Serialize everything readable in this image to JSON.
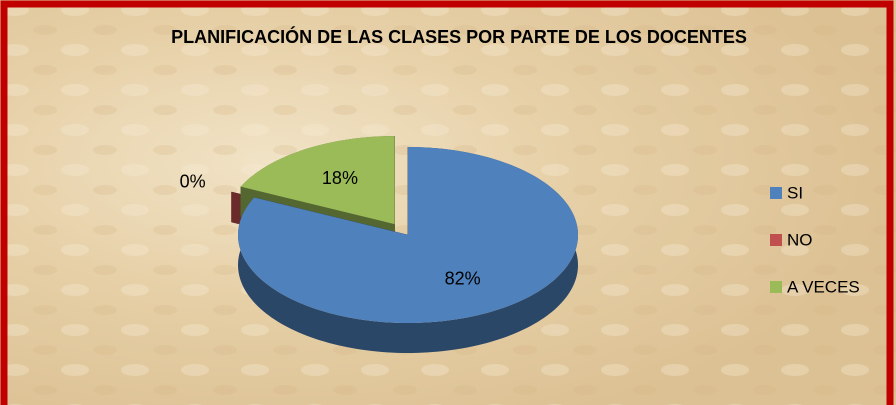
{
  "chart_data": {
    "type": "pie",
    "title": "PLANIFICACIÓN DE LAS CLASES POR PARTE DE LOS DOCENTES",
    "categories": [
      "SI",
      "NO",
      "A VECES"
    ],
    "values": [
      82,
      0,
      18
    ],
    "value_labels": [
      "82%",
      "0%",
      "18%"
    ],
    "colors": [
      "#4f81bd",
      "#c0504d",
      "#9bbb59"
    ],
    "legend": "right",
    "view": "3d"
  }
}
